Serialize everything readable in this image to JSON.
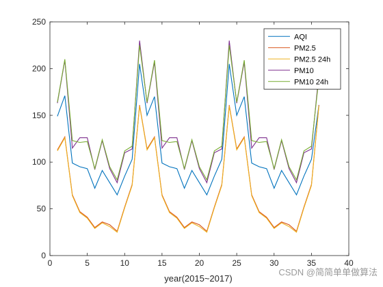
{
  "chart_data": {
    "type": "line",
    "title": "",
    "xlabel": "year(2015~2017)",
    "ylabel": "",
    "xlim": [
      0,
      40
    ],
    "ylim": [
      0,
      250
    ],
    "x_ticks": [
      0,
      5,
      10,
      15,
      20,
      25,
      30,
      35,
      40
    ],
    "y_ticks": [
      0,
      50,
      100,
      150,
      200,
      250
    ],
    "grid": false,
    "legend_position": "top-right",
    "x": [
      1,
      2,
      3,
      4,
      5,
      6,
      7,
      8,
      9,
      10,
      11,
      12,
      13,
      14,
      15,
      16,
      17,
      18,
      19,
      20,
      21,
      22,
      23,
      24,
      25,
      26,
      27,
      28,
      29,
      30,
      31,
      32,
      33,
      34,
      35,
      36
    ],
    "series": [
      {
        "name": "AQI",
        "color": "#0072BD",
        "values": [
          149,
          171,
          99,
          95,
          93,
          72,
          91,
          78,
          65,
          85,
          103,
          205,
          150,
          170,
          99,
          95,
          93,
          72,
          91,
          78,
          65,
          85,
          103,
          205,
          150,
          170,
          99,
          95,
          93,
          72,
          91,
          78,
          65,
          85,
          103,
          161
        ]
      },
      {
        "name": "PM2.5",
        "color": "#D95319",
        "values": [
          113,
          127,
          65,
          47,
          41,
          30,
          36,
          33,
          26,
          52,
          76,
          161,
          114,
          127,
          65,
          47,
          41,
          30,
          36,
          33,
          26,
          52,
          76,
          161,
          114,
          127,
          65,
          47,
          41,
          30,
          36,
          33,
          26,
          52,
          76,
          161
        ]
      },
      {
        "name": "PM2.5 24h",
        "color": "#EDB120",
        "values": [
          112,
          126,
          64,
          46,
          40,
          29,
          35,
          31,
          25,
          51,
          75,
          160,
          113,
          126,
          64,
          46,
          40,
          29,
          35,
          31,
          25,
          51,
          75,
          160,
          113,
          126,
          64,
          46,
          40,
          29,
          35,
          31,
          25,
          51,
          75,
          160
        ]
      },
      {
        "name": "PM10",
        "color": "#7E2F8E",
        "values": [
          163,
          209,
          115,
          126,
          126,
          92,
          123,
          93,
          78,
          110,
          114,
          230,
          163,
          207,
          115,
          126,
          126,
          92,
          123,
          93,
          78,
          110,
          114,
          230,
          163,
          207,
          115,
          126,
          126,
          92,
          123,
          93,
          78,
          110,
          114,
          195
        ]
      },
      {
        "name": "PM10 24h",
        "color": "#77AC30",
        "values": [
          164,
          210,
          123,
          121,
          122,
          93,
          124,
          95,
          81,
          112,
          117,
          225,
          164,
          209,
          123,
          121,
          122,
          93,
          124,
          95,
          81,
          112,
          117,
          225,
          164,
          209,
          123,
          121,
          122,
          93,
          124,
          95,
          81,
          112,
          117,
          190
        ]
      }
    ]
  },
  "watermark": "CSDN @简简单单做算法"
}
